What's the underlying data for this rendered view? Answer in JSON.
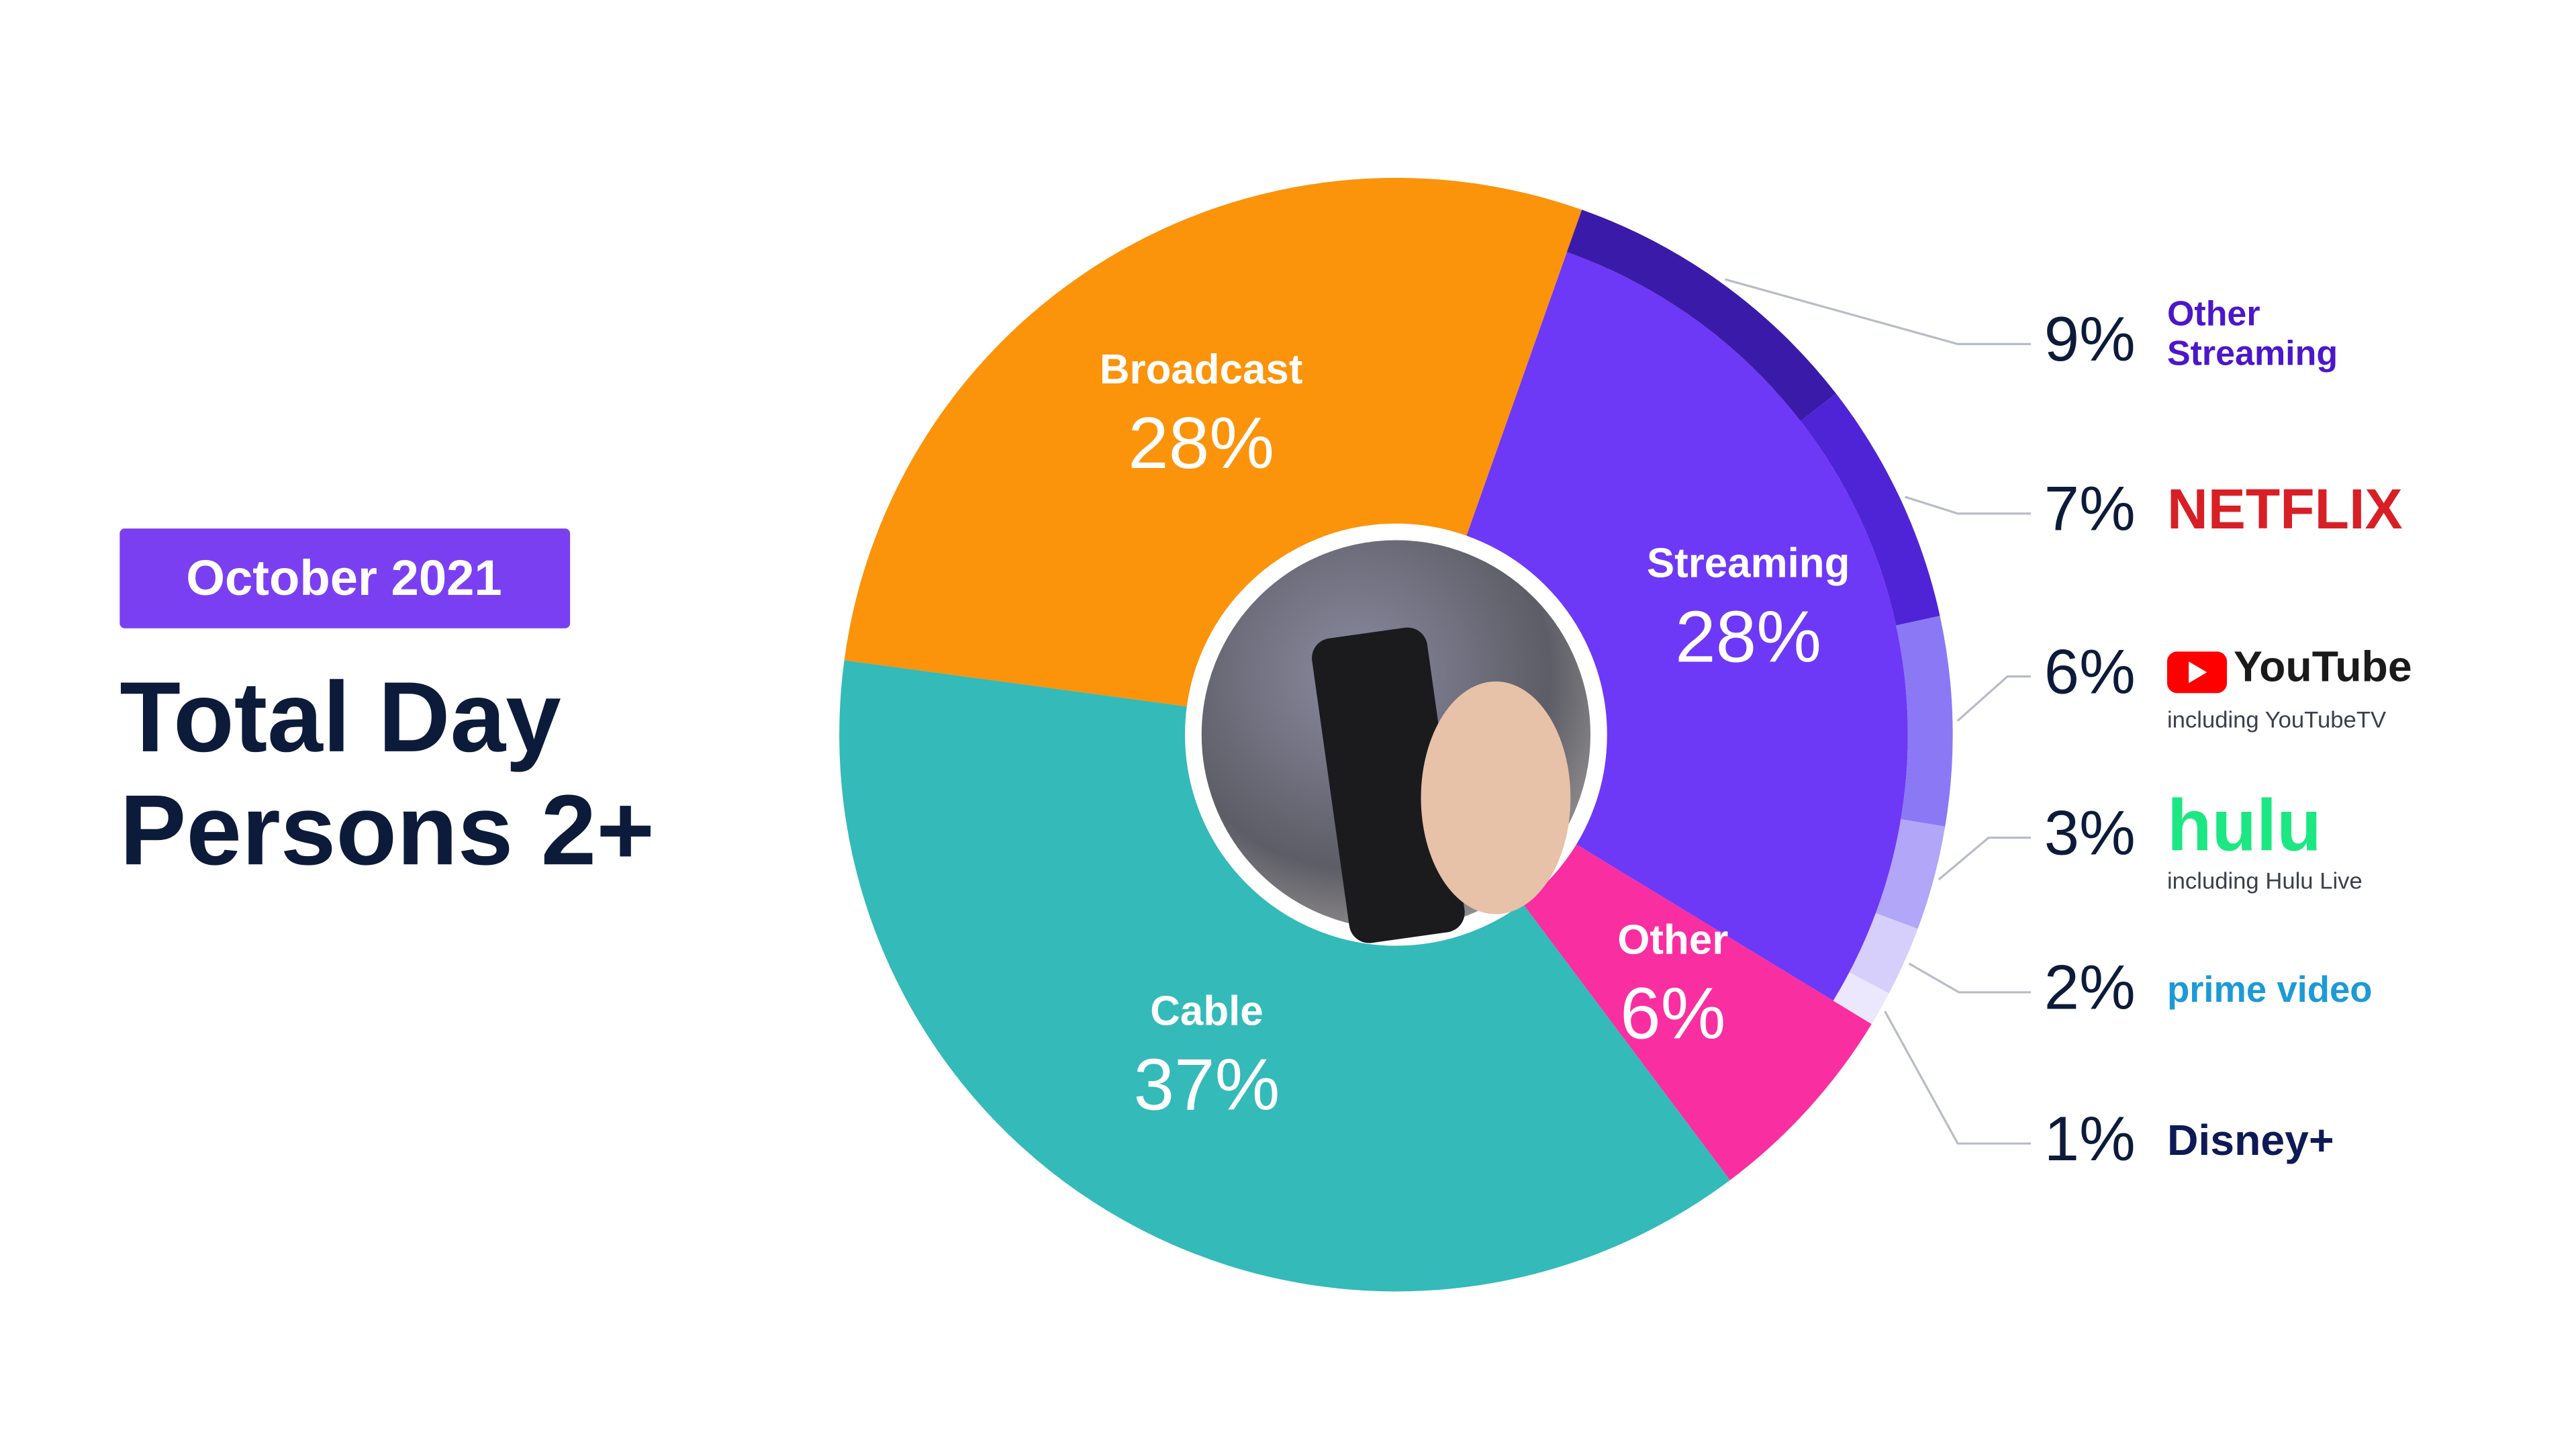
{
  "chart_data": {
    "type": "donut",
    "badge": "October 2021",
    "title": [
      "Total Day",
      "Persons 2+"
    ],
    "categories": [
      "Streaming",
      "Other",
      "Cable",
      "Broadcast"
    ],
    "values": [
      28,
      6,
      37,
      28
    ],
    "value_labels": [
      "28%",
      "6%",
      "37%",
      "28%"
    ],
    "colors": [
      "#6e38f7",
      "#f92ea0",
      "#33bab9",
      "#fb930b"
    ],
    "streaming_breakdown": {
      "categories": [
        "Other Streaming",
        "NETFLIX",
        "YouTube",
        "hulu",
        "prime video",
        "Disney+"
      ],
      "captions": [
        null,
        null,
        "including YouTubeTV",
        "including Hulu Live",
        null,
        null
      ],
      "values": [
        9,
        7,
        6,
        3,
        2,
        1
      ],
      "value_labels": [
        "9%",
        "7%",
        "6%",
        "3%",
        "2%",
        "1%"
      ],
      "colors": [
        "#3a1aa8",
        "#4f24d6",
        "#8b78f5",
        "#b1a6f8",
        "#d6cffc",
        "#ebe7fd"
      ],
      "label_colors": [
        "#4b17c9",
        "#d81f26",
        "#1a1a1a",
        "#1ce783",
        "#1c9ad6",
        "#0e1a55"
      ]
    }
  }
}
